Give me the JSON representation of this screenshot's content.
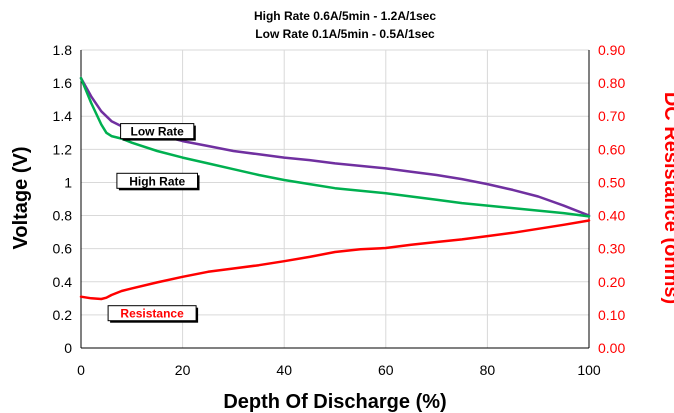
{
  "chart_data": {
    "type": "line",
    "title_line1": "High Rate 0.6A/5min - 1.2A/1sec",
    "title_line2": "Low Rate 0.1A/5min - 0.5A/1sec",
    "xlabel": "Depth Of Discharge (%)",
    "ylabel": "Voltage (V)",
    "y2label": "DC Resistance (ohms)",
    "xlim": [
      0,
      100
    ],
    "ylim": [
      0,
      1.8
    ],
    "y2lim": [
      0,
      0.9
    ],
    "xticks": [
      "0",
      "20",
      "40",
      "60",
      "80",
      "100"
    ],
    "yticks": [
      "0",
      "0.2",
      "0.4",
      "0.6",
      "0.8",
      "1",
      "1.2",
      "1.4",
      "1.6",
      "1.8"
    ],
    "y2ticks": [
      "0.00",
      "0.10",
      "0.20",
      "0.30",
      "0.40",
      "0.50",
      "0.60",
      "0.70",
      "0.80",
      "0.90"
    ],
    "grid": true,
    "series": [
      {
        "name": "Low Rate",
        "axis": "left",
        "color": "#7030a0",
        "x": [
          0,
          2,
          4,
          6,
          8,
          10,
          15,
          20,
          25,
          30,
          35,
          40,
          45,
          50,
          55,
          60,
          65,
          70,
          75,
          80,
          85,
          90,
          95,
          100
        ],
        "y": [
          1.63,
          1.52,
          1.43,
          1.37,
          1.34,
          1.32,
          1.29,
          1.25,
          1.22,
          1.19,
          1.17,
          1.15,
          1.135,
          1.115,
          1.1,
          1.085,
          1.065,
          1.045,
          1.02,
          0.99,
          0.955,
          0.915,
          0.86,
          0.8
        ]
      },
      {
        "name": "High Rate",
        "axis": "left",
        "color": "#00b050",
        "x": [
          0,
          2,
          4,
          5,
          6,
          8,
          10,
          15,
          20,
          25,
          30,
          35,
          40,
          45,
          50,
          55,
          60,
          65,
          70,
          75,
          80,
          85,
          90,
          95,
          100
        ],
        "y": [
          1.63,
          1.48,
          1.35,
          1.3,
          1.28,
          1.265,
          1.24,
          1.19,
          1.15,
          1.115,
          1.08,
          1.045,
          1.015,
          0.99,
          0.965,
          0.95,
          0.935,
          0.915,
          0.895,
          0.875,
          0.86,
          0.845,
          0.83,
          0.815,
          0.795
        ]
      },
      {
        "name": "Resistance",
        "axis": "right",
        "color": "#ff0000",
        "x": [
          0,
          2,
          4,
          5,
          6,
          8,
          10,
          15,
          20,
          25,
          30,
          35,
          40,
          45,
          50,
          55,
          60,
          65,
          70,
          75,
          80,
          85,
          90,
          95,
          100
        ],
        "y": [
          0.155,
          0.15,
          0.148,
          0.152,
          0.16,
          0.172,
          0.18,
          0.198,
          0.215,
          0.23,
          0.24,
          0.25,
          0.262,
          0.275,
          0.29,
          0.298,
          0.302,
          0.312,
          0.32,
          0.328,
          0.338,
          0.348,
          0.36,
          0.372,
          0.385
        ]
      }
    ],
    "annotations": [
      {
        "text": "Low Rate",
        "color": "#000000",
        "x": 15,
        "y": 1.31
      },
      {
        "text": "High Rate",
        "color": "#000000",
        "x": 15,
        "y": 1.01
      },
      {
        "text": "Resistance",
        "color": "#ff0000",
        "x": 14,
        "y": 0.21
      }
    ]
  }
}
